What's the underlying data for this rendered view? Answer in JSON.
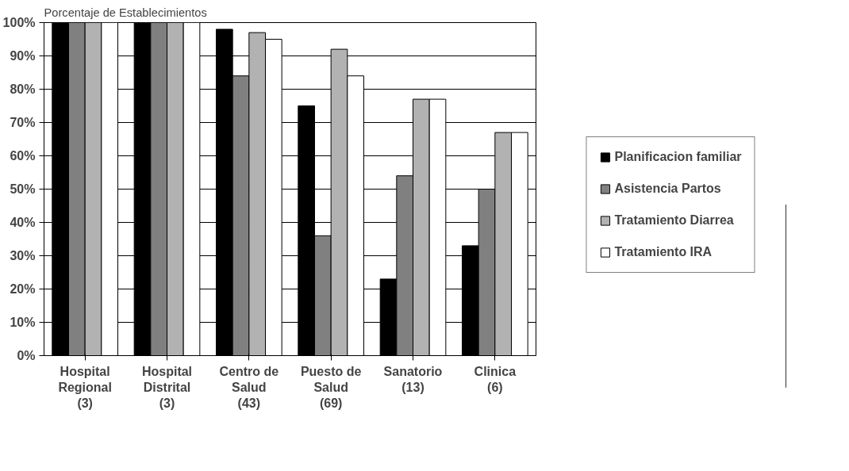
{
  "chart_data": {
    "type": "bar",
    "title": "Porcentaje de Establecimientos",
    "categories": [
      "Hospital Regional (3)",
      "Hospital Distrital (3)",
      "Centro de Salud (43)",
      "Puesto de Salud (69)",
      "Sanatorio (13)",
      "Clinica (6)"
    ],
    "series": [
      {
        "name": "Planificacion familiar",
        "color": "#000000",
        "values": [
          100,
          100,
          98,
          75,
          23,
          33
        ]
      },
      {
        "name": "Asistencia Partos",
        "color": "#808080",
        "values": [
          100,
          100,
          84,
          36,
          54,
          50
        ]
      },
      {
        "name": "Tratamiento Diarrea",
        "color": "#b2b2b2",
        "values": [
          100,
          100,
          97,
          92,
          77,
          67
        ]
      },
      {
        "name": "Tratamiento IRA",
        "color": "#ffffff",
        "values": [
          100,
          100,
          95,
          84,
          77,
          67
        ]
      }
    ],
    "ylim": [
      0,
      100
    ],
    "yticks": [
      {
        "value": 0,
        "label": "0%"
      },
      {
        "value": 10,
        "label": "10%"
      },
      {
        "value": 20,
        "label": "20%"
      },
      {
        "value": 30,
        "label": "30%"
      },
      {
        "value": 40,
        "label": "40%"
      },
      {
        "value": 50,
        "label": "50%"
      },
      {
        "value": 60,
        "label": "60%"
      },
      {
        "value": 70,
        "label": "70%"
      },
      {
        "value": 80,
        "label": "80%"
      },
      {
        "value": 90,
        "label": "90%"
      },
      {
        "value": 100,
        "label": "100%"
      }
    ],
    "grid": "y",
    "legend": "right"
  }
}
